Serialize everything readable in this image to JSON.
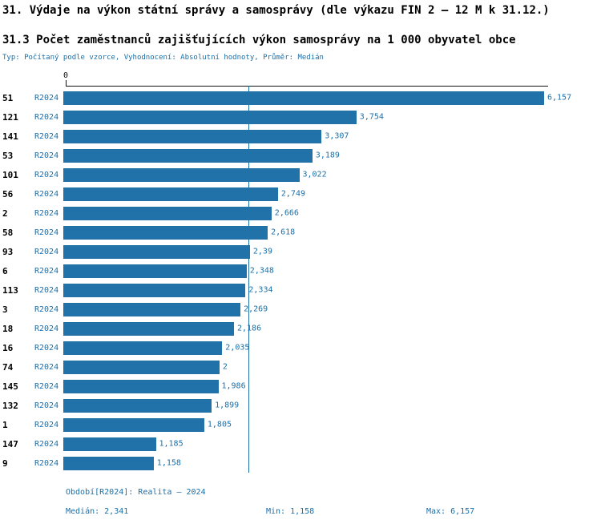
{
  "header": {
    "title": "31. Výdaje na výkon státní správy a samosprávy (dle výkazu FIN 2 – 12 M k 31.12.)",
    "subtitle": "31.3 Počet zaměstnanců zajišťujících výkon samosprávy na 1 000 obyvatel obce",
    "meta": "Typ: Počítaný podle vzorce, Vyhodnocení: Absolutní hodnoty, Průměr: Medián"
  },
  "chart_data": {
    "type": "bar",
    "orientation": "horizontal",
    "title": "31.3 Počet zaměstnanců zajišťujících výkon samosprávy na 1 000 obyvatel obce",
    "series_label": "R2024",
    "categories": [
      "51",
      "121",
      "141",
      "53",
      "101",
      "56",
      "2",
      "58",
      "93",
      "6",
      "113",
      "3",
      "18",
      "16",
      "74",
      "145",
      "132",
      "1",
      "147",
      "9"
    ],
    "values": [
      6.157,
      3.754,
      3.307,
      3.189,
      3.022,
      2.749,
      2.666,
      2.618,
      2.39,
      2.348,
      2.334,
      2.269,
      2.186,
      2.035,
      2,
      1.986,
      1.899,
      1.805,
      1.185,
      1.158
    ],
    "value_labels": [
      "6,157",
      "3,754",
      "3,307",
      "3,189",
      "3,022",
      "2,749",
      "2,666",
      "2,618",
      "2,39",
      "2,348",
      "2,334",
      "2,269",
      "2,186",
      "2,035",
      "2",
      "1,986",
      "1,899",
      "1,805",
      "1,185",
      "1,158"
    ],
    "median": 2.341,
    "xlim": [
      0,
      6.157
    ],
    "axis": {
      "zero_label": "0"
    },
    "grid": false,
    "legend": "none",
    "bar_color": "#2172a8",
    "accent_text_color": "#1a6fa8"
  },
  "footer": {
    "period": "Období[R2024]: Realita – 2024",
    "median": "Medián: 2,341",
    "min": "Min: 1,158",
    "max": "Max: 6,157"
  }
}
